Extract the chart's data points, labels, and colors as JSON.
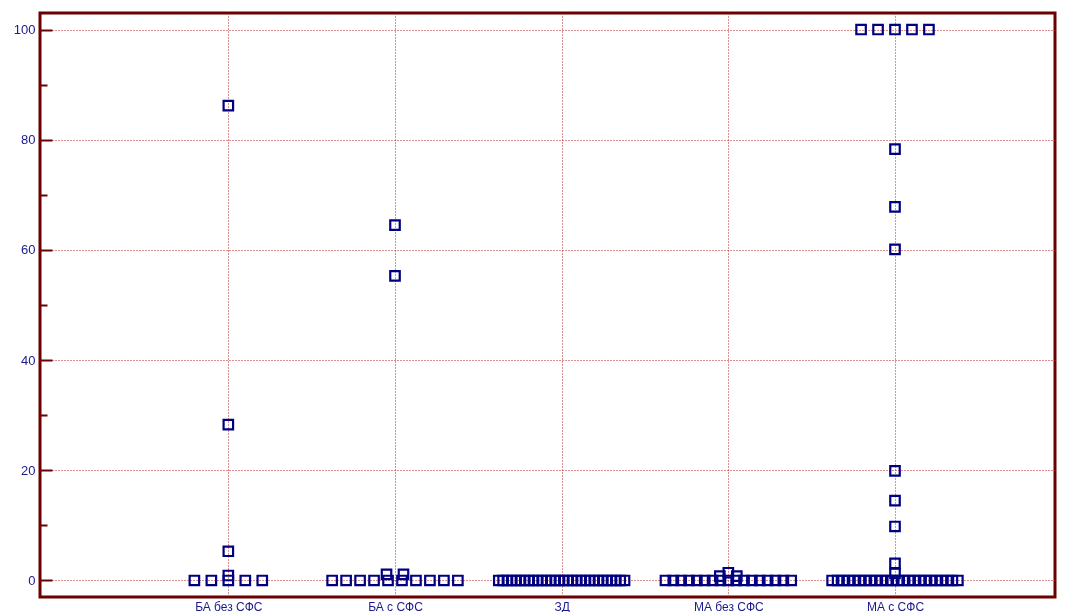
{
  "chart_data": {
    "type": "scatter",
    "categories": [
      "БА без СФС",
      "БА с СФС",
      "ЗД",
      "МА без СФС",
      "МА с СФС"
    ],
    "series": [
      {
        "color": "#000080",
        "x": [
          "БА без СФС",
          "БА без СФС",
          "БА без СФС",
          "БА без СФС",
          "БА без СФС",
          "БА без СФС",
          "БА без СФС",
          "БА без СФС",
          "БА без СФС"
        ],
        "values": [
          86.2,
          28.3,
          5.3,
          0.9,
          0,
          0,
          0,
          0,
          0
        ]
      },
      {
        "color": "#000080",
        "x": [
          "БА с СФС",
          "БА с СФС",
          "БА с СФС",
          "БА с СФС",
          "БА с СФС",
          "БА с СФС",
          "БА с СФС",
          "БА с СФС",
          "БА с СФС",
          "БА с СФС",
          "БА с СФС",
          "БА с СФС",
          "БА с СФС",
          "БА с СФС"
        ],
        "values": [
          64.5,
          55.3,
          1.1,
          1.1,
          0,
          0,
          0,
          0,
          0,
          0,
          0,
          0,
          0,
          0
        ]
      },
      {
        "color": "#000080",
        "x": [
          "ЗД",
          "ЗД",
          "ЗД",
          "ЗД",
          "ЗД",
          "ЗД",
          "ЗД",
          "ЗД",
          "ЗД",
          "ЗД",
          "ЗД",
          "ЗД",
          "ЗД",
          "ЗД",
          "ЗД",
          "ЗД",
          "ЗД",
          "ЗД",
          "ЗД",
          "ЗД",
          "ЗД",
          "ЗД",
          "ЗД",
          "ЗД",
          "ЗД",
          "ЗД",
          "ЗД",
          "ЗД",
          "ЗД",
          "ЗД"
        ],
        "values": [
          0,
          0,
          0,
          0,
          0,
          0,
          0,
          0,
          0,
          0,
          0,
          0,
          0,
          0,
          0,
          0,
          0,
          0,
          0,
          0,
          0,
          0,
          0,
          0,
          0,
          0,
          0,
          0,
          0,
          0
        ]
      },
      {
        "color": "#000080",
        "x": [
          "МА без СФС",
          "МА без СФС",
          "МА без СФС",
          "МА без СФС",
          "МА без СФС",
          "МА без СФС",
          "МА без СФС",
          "МА без СФС",
          "МА без СФС",
          "МА без СФС",
          "МА без СФС",
          "МА без СФС",
          "МА без СФС",
          "МА без СФС",
          "МА без СФС",
          "МА без СФС",
          "МА без СФС",
          "МА без СФС",
          "МА без СФС",
          "МА без СФС"
        ],
        "values": [
          1.4,
          0.8,
          0.8,
          0,
          0,
          0,
          0,
          0,
          0,
          0,
          0,
          0,
          0,
          0,
          0,
          0,
          0,
          0,
          0,
          0
        ]
      },
      {
        "color": "#000080",
        "x": [
          "МА с СФС",
          "МА с СФС",
          "МА с СФС",
          "МА с СФС",
          "МА с СФС",
          "МА с СФС",
          "МА с СФС",
          "МА с СФС",
          "МА с СФС",
          "МА с СФС",
          "МА с СФС",
          "МА с СФС",
          "МА с СФС",
          "МА с СФС",
          "МА с СФС",
          "МА с СФС",
          "МА с СФС",
          "МА с СФС",
          "МА с СФС",
          "МА с СФС",
          "МА с СФС",
          "МА с СФС",
          "МА с СФС",
          "МА с СФС",
          "МА с СФС",
          "МА с СФС",
          "МА с СФС",
          "МА с СФС",
          "МА с СФС",
          "МА с СФС",
          "МА с СФС",
          "МА с СФС",
          "МА с СФС",
          "МА с СФС",
          "МА с СФС",
          "МА с СФС",
          "МА с СФС"
        ],
        "values": [
          100,
          100,
          100,
          100,
          100,
          78.3,
          67.8,
          60.1,
          19.9,
          14.5,
          9.8,
          3.1,
          1.3,
          0,
          0,
          0,
          0,
          0,
          0,
          0,
          0,
          0,
          0,
          0,
          0,
          0,
          0,
          0,
          0,
          0,
          0,
          0,
          0,
          0,
          0,
          0,
          0
        ]
      }
    ],
    "ylim": [
      -3,
      103
    ],
    "yticks": [
      0,
      {
        "value": 10,
        "label": null
      },
      20,
      {
        "value": 30,
        "label": null
      },
      40,
      {
        "value": 50,
        "label": null
      },
      60,
      {
        "value": 70,
        "label": null
      },
      80,
      {
        "value": 90,
        "label": null
      },
      100
    ],
    "grid": true,
    "marker": "square"
  }
}
